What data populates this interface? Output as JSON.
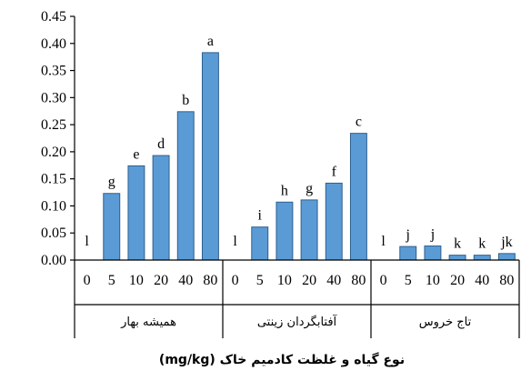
{
  "chart_data": {
    "type": "bar",
    "title": "",
    "xlabel": "نوع گیاه و غلظت کادمیم خاک (mg/kg)",
    "ylabel": "",
    "ylim": [
      0,
      0.45
    ],
    "yticks": [
      "0.00",
      "0.05",
      "0.10",
      "0.15",
      "0.20",
      "0.25",
      "0.30",
      "0.35",
      "0.40",
      "0.45"
    ],
    "groups": [
      {
        "name": "همیشه بهار",
        "concentrations": [
          "0",
          "5",
          "10",
          "20",
          "40",
          "80"
        ],
        "values": [
          0.0,
          0.123,
          0.174,
          0.193,
          0.274,
          0.383
        ],
        "letters": [
          "l",
          "g",
          "e",
          "d",
          "b",
          "a"
        ]
      },
      {
        "name": "آفتابگردان زینتی",
        "concentrations": [
          "0",
          "5",
          "10",
          "20",
          "40",
          "80"
        ],
        "values": [
          0.0,
          0.061,
          0.107,
          0.111,
          0.142,
          0.234
        ],
        "letters": [
          "l",
          "i",
          "h",
          "g",
          "f",
          "c"
        ]
      },
      {
        "name": "تاج خروس",
        "concentrations": [
          "0",
          "5",
          "10",
          "20",
          "40",
          "80"
        ],
        "values": [
          0.0,
          0.025,
          0.026,
          0.009,
          0.009,
          0.012
        ],
        "letters": [
          "l",
          "j",
          "j",
          "k",
          "k",
          "jk"
        ]
      }
    ],
    "colors": {
      "bar_fill": "#5b9bd5",
      "bar_stroke": "#2e5f8f"
    },
    "grid": false,
    "legend": "none"
  }
}
